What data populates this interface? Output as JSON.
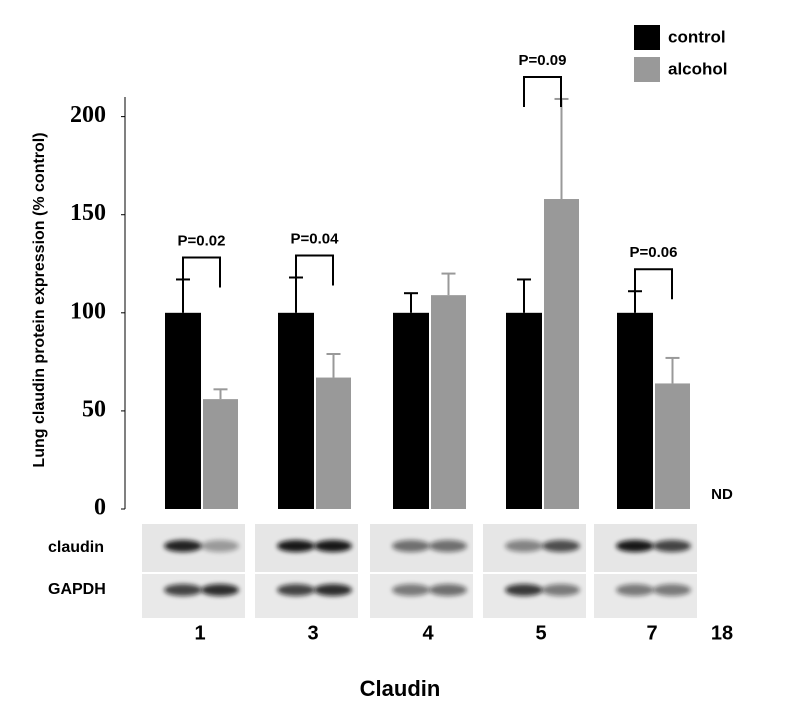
{
  "chart_data": {
    "type": "bar",
    "y_label": "Lung claudin protein expression (% control)",
    "x_label": "Claudin",
    "categories": [
      "1",
      "3",
      "4",
      "5",
      "7",
      "18"
    ],
    "series": [
      {
        "name": "control",
        "color": "#000000",
        "values": [
          100,
          100,
          100,
          100,
          100,
          null
        ],
        "errors": [
          17,
          18,
          10,
          17,
          11,
          null
        ]
      },
      {
        "name": "alcohol",
        "color": "#999999",
        "values": [
          56,
          67,
          109,
          158,
          64,
          null
        ],
        "errors": [
          5,
          12,
          11,
          51,
          13,
          null
        ]
      }
    ],
    "ylim": [
      0,
      210
    ],
    "yticks": [
      0,
      50,
      100,
      150,
      200
    ],
    "grid": false,
    "legend": "top-right",
    "annotations": [
      {
        "category": "1",
        "text": "P=0.02"
      },
      {
        "category": "3",
        "text": "P=0.04"
      },
      {
        "category": "5",
        "text": "P=0.09"
      },
      {
        "category": "7",
        "text": "P=0.06"
      },
      {
        "category": "18",
        "text": "ND"
      }
    ],
    "blot_labels": [
      "claudin",
      "GAPDH"
    ]
  }
}
